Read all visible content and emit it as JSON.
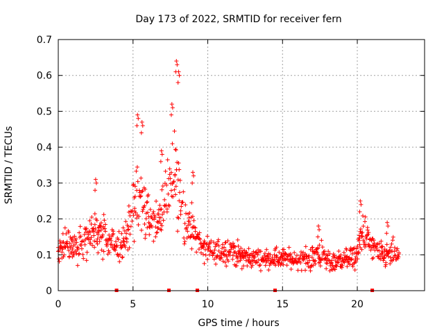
{
  "chart_data": {
    "type": "scatter",
    "title": "Day 173 of 2022, SRMTID for receiver fern",
    "xlabel": "GPS time / hours",
    "ylabel": "SRMTID / TECUs",
    "xlim": [
      0,
      24.5
    ],
    "ylim": [
      0,
      0.7
    ],
    "x_ticks": [
      0,
      5,
      10,
      15,
      20
    ],
    "x_tick_labels": [
      "0",
      "5",
      "10",
      "15",
      "20"
    ],
    "y_ticks": [
      0,
      0.1,
      0.2,
      0.3,
      0.4,
      0.5,
      0.6,
      0.7
    ],
    "y_tick_labels": [
      "0",
      "0.1",
      "0.2",
      "0.3",
      "0.4",
      "0.5",
      "0.6",
      "0.7"
    ],
    "grid": true,
    "marker": "+",
    "color": "#ff0000",
    "zero_markers_x": [
      3.9,
      7.4,
      9.3,
      14.5,
      21.0
    ],
    "series": [
      {
        "name": "SRMTID",
        "envelope_hours": [
          0,
          0.5,
          1,
          1.5,
          2,
          2.5,
          3,
          3.5,
          4,
          4.5,
          5,
          5.3,
          5.6,
          6,
          6.4,
          6.8,
          7.2,
          7.5,
          7.8,
          8.0,
          8.3,
          8.7,
          9.0,
          9.3,
          9.6,
          10,
          10.5,
          11,
          11.5,
          12,
          13,
          14,
          15,
          16,
          17,
          17.4,
          18,
          18.5,
          19,
          19.5,
          20,
          20.3,
          20.6,
          21,
          21.5,
          22,
          22.5,
          22.8
        ],
        "center": [
          0.11,
          0.13,
          0.12,
          0.14,
          0.15,
          0.17,
          0.15,
          0.13,
          0.12,
          0.15,
          0.22,
          0.27,
          0.25,
          0.2,
          0.18,
          0.2,
          0.27,
          0.3,
          0.35,
          0.32,
          0.22,
          0.17,
          0.18,
          0.15,
          0.12,
          0.11,
          0.1,
          0.11,
          0.12,
          0.1,
          0.09,
          0.09,
          0.09,
          0.085,
          0.09,
          0.11,
          0.08,
          0.08,
          0.09,
          0.09,
          0.1,
          0.17,
          0.15,
          0.12,
          0.1,
          0.1,
          0.1,
          0.09
        ],
        "spread": [
          0.05,
          0.06,
          0.06,
          0.07,
          0.08,
          0.1,
          0.08,
          0.06,
          0.06,
          0.07,
          0.12,
          0.15,
          0.14,
          0.1,
          0.09,
          0.1,
          0.13,
          0.15,
          0.22,
          0.2,
          0.12,
          0.09,
          0.09,
          0.08,
          0.07,
          0.05,
          0.05,
          0.05,
          0.06,
          0.05,
          0.04,
          0.04,
          0.04,
          0.04,
          0.05,
          0.06,
          0.04,
          0.04,
          0.04,
          0.04,
          0.05,
          0.08,
          0.07,
          0.05,
          0.05,
          0.05,
          0.06,
          0.04
        ],
        "peaks": [
          [
            2.5,
            0.31
          ],
          [
            5.3,
            0.49
          ],
          [
            5.6,
            0.47
          ],
          [
            6.9,
            0.39
          ],
          [
            7.9,
            0.64
          ],
          [
            8.05,
            0.61
          ],
          [
            7.6,
            0.52
          ],
          [
            9.0,
            0.33
          ],
          [
            17.4,
            0.18
          ],
          [
            20.2,
            0.25
          ],
          [
            22.0,
            0.19
          ]
        ]
      }
    ]
  }
}
